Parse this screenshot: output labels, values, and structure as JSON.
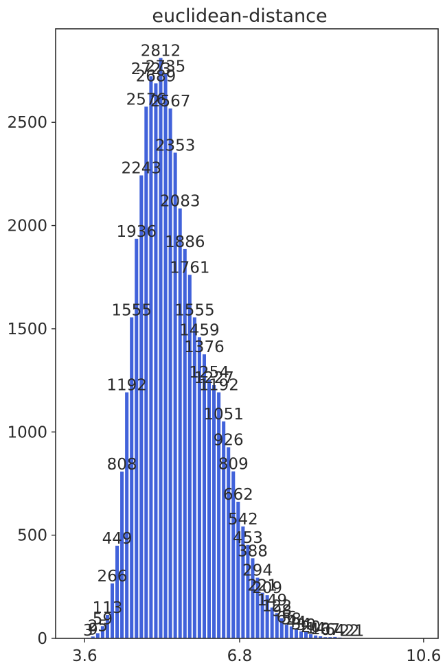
{
  "chart_data": {
    "type": "bar",
    "title": "euclidean-distance",
    "xlabel": "",
    "ylabel": "",
    "x_ticks": [
      {
        "value": 3.6,
        "label": "3.6"
      },
      {
        "value": 6.8,
        "label": "6.8"
      },
      {
        "value": 10.6,
        "label": "10.6"
      }
    ],
    "y_ticks": [
      {
        "value": 0,
        "label": "0"
      },
      {
        "value": 500,
        "label": "500"
      },
      {
        "value": 1000,
        "label": "1000"
      },
      {
        "value": 1500,
        "label": "1500"
      },
      {
        "value": 2000,
        "label": "2000"
      },
      {
        "value": 2500,
        "label": "2500"
      }
    ],
    "xlim": [
      3.0,
      10.9
    ],
    "ylim": [
      0,
      2953
    ],
    "bin_start": 3.62,
    "bin_width": 0.1,
    "values": [
      3,
      9,
      25,
      59,
      113,
      266,
      449,
      808,
      1192,
      1555,
      1936,
      2243,
      2576,
      2723,
      2689,
      2812,
      2735,
      2567,
      2353,
      2083,
      1886,
      1761,
      1555,
      1459,
      1376,
      1254,
      1227,
      1192,
      1051,
      926,
      809,
      662,
      542,
      453,
      388,
      294,
      221,
      209,
      149,
      122,
      98,
      66,
      58,
      44,
      34,
      30,
      20,
      14,
      10,
      6,
      6,
      7,
      4,
      2,
      2,
      2,
      1
    ],
    "bar_color": "#4162da",
    "grid": false,
    "legend": "none"
  }
}
